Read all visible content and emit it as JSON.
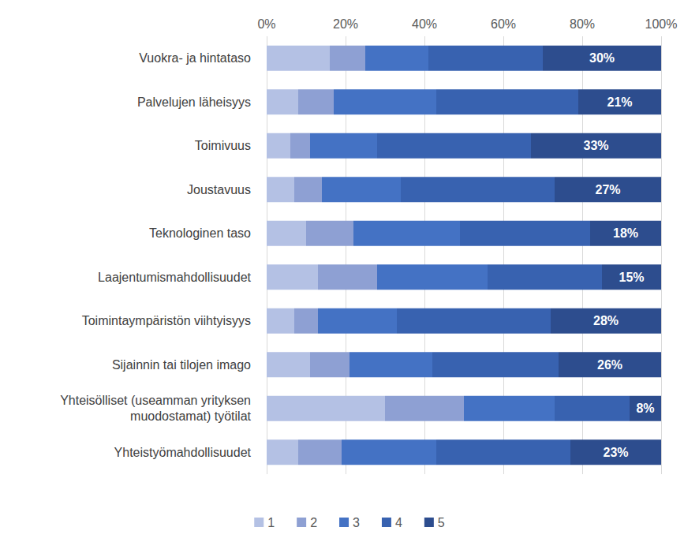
{
  "chart_data": {
    "type": "bar",
    "orientation": "horizontal",
    "stacked": true,
    "grid": true,
    "legend": "bottom",
    "categories": [
      "Vuokra- ja hintataso",
      "Palvelujen läheisyys",
      "Toimivuus",
      "Joustavuus",
      "Teknologinen taso",
      "Laajentumismahdollisuudet",
      "Toimintaympäristön viihtyisyys",
      "Sijainnin tai tilojen imago",
      "Yhteisölliset (useamman yrityksen\nmuodostamat) työtilat",
      "Yhteistyömahdollisuudet"
    ],
    "xlim": [
      0,
      100
    ],
    "xticks": [
      {
        "value": 0,
        "label": "0%"
      },
      {
        "value": 20,
        "label": "20%"
      },
      {
        "value": 40,
        "label": "40%"
      },
      {
        "value": 60,
        "label": "60%"
      },
      {
        "value": 80,
        "label": "80%"
      },
      {
        "value": 100,
        "label": "100%"
      }
    ],
    "series": [
      {
        "name": "1",
        "color": "#b4c1e4",
        "values": [
          16,
          8,
          6,
          7,
          10,
          13,
          7,
          11,
          30,
          8
        ]
      },
      {
        "name": "2",
        "color": "#8ea0d3",
        "values": [
          9,
          9,
          5,
          7,
          12,
          15,
          6,
          10,
          20,
          11
        ]
      },
      {
        "name": "3",
        "color": "#4472c4",
        "values": [
          16,
          26,
          17,
          20,
          27,
          28,
          20,
          21,
          23,
          24
        ]
      },
      {
        "name": "4",
        "color": "#3862b0",
        "values": [
          29,
          36,
          39,
          39,
          33,
          29,
          39,
          32,
          19,
          34
        ]
      },
      {
        "name": "5",
        "color": "#2d4d8e",
        "values": [
          30,
          21,
          33,
          27,
          18,
          15,
          28,
          26,
          8,
          23
        ],
        "data_labels": true,
        "value_labels": [
          "30%",
          "21%",
          "33%",
          "27%",
          "18%",
          "15%",
          "28%",
          "26%",
          "8%",
          "23%"
        ]
      }
    ]
  }
}
